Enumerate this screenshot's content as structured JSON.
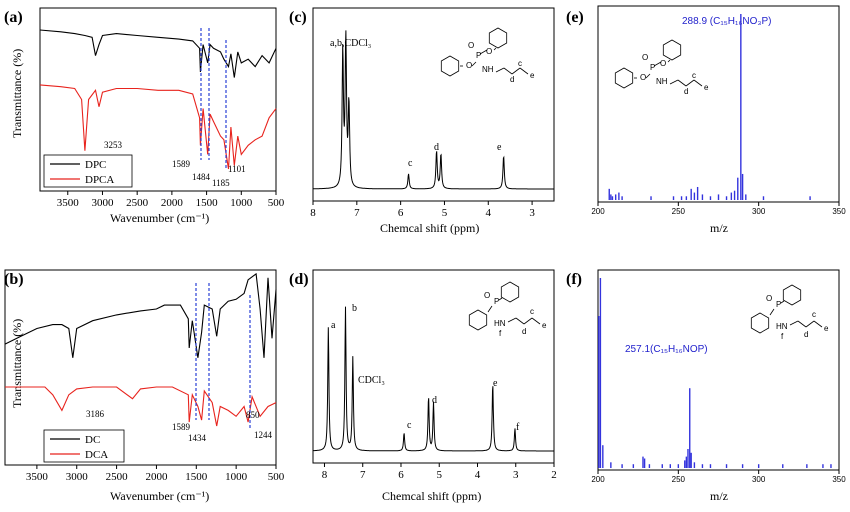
{
  "panels": {
    "a": {
      "letter": "(a)",
      "xlabel": "Wavenumber (cm⁻¹)",
      "ylabel": "Transmittance (%)",
      "xticks": [
        "3500",
        "3000",
        "2500",
        "2000",
        "1500",
        "1000",
        "500"
      ],
      "legend": [
        "DPC",
        "DPCA"
      ],
      "annotations": [
        "3253",
        "1589",
        "1484",
        "1185",
        "1101"
      ]
    },
    "b": {
      "letter": "(b)",
      "xlabel": "Wavenumber (cm⁻¹)",
      "ylabel": "Transmittance (%)",
      "xticks": [
        "3500",
        "3000",
        "2500",
        "2000",
        "1500",
        "1000",
        "500"
      ],
      "legend": [
        "DC",
        "DCA"
      ],
      "annotations": [
        "3186",
        "1589",
        "1434",
        "1244",
        "850"
      ]
    },
    "c": {
      "letter": "(c)",
      "xlabel": "Chemcal shift (ppm)",
      "xticks": [
        "8",
        "7",
        "6",
        "5",
        "4",
        "3"
      ],
      "peak_labels": [
        "a,b,CDCl₃",
        "c",
        "d",
        "e"
      ]
    },
    "d": {
      "letter": "(d)",
      "xlabel": "Chemcal shift (ppm)",
      "xticks": [
        "8",
        "7",
        "6",
        "5",
        "4",
        "3",
        "2"
      ],
      "peak_labels": [
        "a",
        "b",
        "CDCl₃",
        "c",
        "d",
        "e",
        "f"
      ]
    },
    "e": {
      "letter": "(e)",
      "xlabel": "m/z",
      "xticks": [
        "200",
        "250",
        "300",
        "350"
      ],
      "ion_label": "288.9 (C₁₅H₁₆NO₃P)"
    },
    "f": {
      "letter": "(f)",
      "xlabel": "m/z",
      "xticks": [
        "200",
        "250",
        "300",
        "350"
      ],
      "ion_label": "257.1(C₁₅H₁₆NOP)"
    }
  },
  "colors": {
    "black_series": "#000000",
    "red_series": "#e8231d",
    "ms_bars": "#3333dd",
    "guide_lines": "#2a3fd6"
  },
  "chart_data": [
    {
      "panel": "a",
      "type": "line",
      "xlim": [
        3900,
        500
      ],
      "series": [
        {
          "name": "DPC",
          "x": [
            3900,
            3600,
            3400,
            3253,
            3150,
            3100,
            3050,
            3000,
            2800,
            2500,
            2200,
            1900,
            1700,
            1600,
            1589,
            1550,
            1484,
            1450,
            1400,
            1300,
            1250,
            1185,
            1150,
            1101,
            1050,
            1000,
            900,
            800,
            700,
            600,
            500
          ],
          "y": [
            0.88,
            0.87,
            0.86,
            0.85,
            0.84,
            0.74,
            0.8,
            0.85,
            0.86,
            0.85,
            0.84,
            0.83,
            0.82,
            0.78,
            0.65,
            0.8,
            0.7,
            0.8,
            0.78,
            0.76,
            0.72,
            0.68,
            0.75,
            0.62,
            0.76,
            0.7,
            0.72,
            0.68,
            0.74,
            0.7,
            0.78
          ]
        },
        {
          "name": "DPCA",
          "x": [
            3900,
            3600,
            3400,
            3300,
            3253,
            3200,
            3100,
            3050,
            3000,
            2800,
            2500,
            2200,
            1900,
            1700,
            1600,
            1589,
            1550,
            1484,
            1450,
            1400,
            1300,
            1250,
            1185,
            1150,
            1101,
            1050,
            1000,
            900,
            800,
            700,
            600,
            500
          ],
          "y": [
            0.58,
            0.57,
            0.56,
            0.5,
            0.22,
            0.5,
            0.55,
            0.46,
            0.54,
            0.56,
            0.56,
            0.55,
            0.55,
            0.53,
            0.4,
            0.25,
            0.45,
            0.2,
            0.42,
            0.38,
            0.3,
            0.28,
            0.12,
            0.35,
            0.14,
            0.3,
            0.2,
            0.25,
            0.28,
            0.3,
            0.4,
            0.45
          ]
        }
      ]
    },
    {
      "panel": "b",
      "type": "line",
      "xlim": [
        3900,
        500
      ],
      "series": [
        {
          "name": "DC",
          "x": [
            3900,
            3700,
            3500,
            3300,
            3186,
            3100,
            3050,
            3000,
            2800,
            2500,
            2200,
            2000,
            1900,
            1700,
            1600,
            1589,
            1550,
            1480,
            1434,
            1400,
            1300,
            1244,
            1200,
            1100,
            1000,
            900,
            850,
            750,
            700,
            650,
            600,
            550,
            500
          ],
          "y": [
            0.62,
            0.66,
            0.7,
            0.72,
            0.72,
            0.7,
            0.55,
            0.7,
            0.74,
            0.77,
            0.79,
            0.8,
            0.82,
            0.82,
            0.75,
            0.6,
            0.74,
            0.55,
            0.68,
            0.82,
            0.8,
            0.66,
            0.8,
            0.84,
            0.85,
            0.88,
            0.95,
            0.98,
            0.8,
            0.55,
            0.96,
            0.65,
            0.9
          ]
        },
        {
          "name": "DCA",
          "x": [
            3900,
            3600,
            3400,
            3300,
            3186,
            3100,
            3000,
            2800,
            2500,
            2300,
            2200,
            2000,
            1800,
            1600,
            1589,
            1550,
            1480,
            1434,
            1400,
            1300,
            1244,
            1200,
            1100,
            1000,
            900,
            850,
            800,
            700,
            600,
            500
          ],
          "y": [
            0.4,
            0.4,
            0.4,
            0.36,
            0.28,
            0.36,
            0.39,
            0.4,
            0.4,
            0.34,
            0.39,
            0.4,
            0.4,
            0.36,
            0.22,
            0.36,
            0.3,
            0.23,
            0.38,
            0.32,
            0.2,
            0.3,
            0.28,
            0.25,
            0.3,
            0.22,
            0.35,
            0.25,
            0.3,
            0.32
          ]
        }
      ]
    },
    {
      "panel": "c",
      "type": "line",
      "xlim": [
        8,
        2.5
      ],
      "peaks": [
        {
          "x": 7.32,
          "y": 0.9
        },
        {
          "x": 7.25,
          "y": 1.0
        },
        {
          "x": 7.18,
          "y": 0.55
        },
        {
          "x": 5.82,
          "y": 0.1
        },
        {
          "x": 5.18,
          "y": 0.25
        },
        {
          "x": 5.08,
          "y": 0.23
        },
        {
          "x": 3.65,
          "y": 0.22
        }
      ]
    },
    {
      "panel": "d",
      "type": "line",
      "xlim": [
        8.3,
        2
      ],
      "peaks": [
        {
          "x": 7.9,
          "y": 0.82
        },
        {
          "x": 7.45,
          "y": 0.95
        },
        {
          "x": 7.26,
          "y": 0.62
        },
        {
          "x": 5.92,
          "y": 0.12
        },
        {
          "x": 5.28,
          "y": 0.36
        },
        {
          "x": 5.15,
          "y": 0.32
        },
        {
          "x": 3.6,
          "y": 0.45
        },
        {
          "x": 3.02,
          "y": 0.15
        }
      ]
    },
    {
      "panel": "e",
      "type": "bar",
      "xlim": [
        200,
        350
      ],
      "x": [
        207,
        208,
        209,
        211,
        213,
        215,
        233,
        247,
        252,
        255,
        258,
        260,
        262,
        265,
        270,
        275,
        280,
        283,
        285,
        287,
        288.9,
        290,
        292,
        303,
        332
      ],
      "values": [
        0.06,
        0.03,
        0.02,
        0.03,
        0.04,
        0.02,
        0.02,
        0.02,
        0.02,
        0.02,
        0.06,
        0.04,
        0.07,
        0.03,
        0.02,
        0.03,
        0.02,
        0.04,
        0.05,
        0.12,
        1.0,
        0.14,
        0.03,
        0.02,
        0.02
      ]
    },
    {
      "panel": "f",
      "type": "bar",
      "xlim": [
        200,
        350
      ],
      "x": [
        200.5,
        201.5,
        203,
        208,
        215,
        222,
        228,
        229,
        232,
        240,
        245,
        250,
        254,
        255,
        256,
        257.1,
        258,
        260,
        265,
        270,
        280,
        290,
        300,
        315,
        330,
        340,
        345
      ],
      "values": [
        0.8,
        1.0,
        0.12,
        0.03,
        0.02,
        0.02,
        0.06,
        0.05,
        0.02,
        0.02,
        0.02,
        0.02,
        0.04,
        0.06,
        0.1,
        0.42,
        0.08,
        0.03,
        0.02,
        0.02,
        0.02,
        0.02,
        0.02,
        0.02,
        0.02,
        0.02,
        0.02
      ]
    }
  ]
}
